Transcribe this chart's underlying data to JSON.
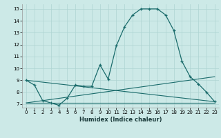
{
  "xlabel": "Humidex (Indice chaleur)",
  "xlim": [
    -0.5,
    23.5
  ],
  "ylim": [
    6.7,
    15.4
  ],
  "yticks": [
    7,
    8,
    9,
    10,
    11,
    12,
    13,
    14,
    15
  ],
  "xticks": [
    0,
    1,
    2,
    3,
    4,
    5,
    6,
    7,
    8,
    9,
    10,
    11,
    12,
    13,
    14,
    15,
    16,
    17,
    18,
    19,
    20,
    21,
    22,
    23
  ],
  "bg_color": "#cce9e7",
  "grid_color": "#aed4d2",
  "line_color": "#1a6b6b",
  "curve_x": [
    0,
    1,
    2,
    3,
    4,
    5,
    6,
    7,
    8,
    9,
    10,
    11,
    12,
    13,
    14,
    15,
    16,
    17,
    18,
    19,
    20,
    21,
    22,
    23
  ],
  "curve_y": [
    9.0,
    8.6,
    7.3,
    7.1,
    6.9,
    7.5,
    8.6,
    8.5,
    8.5,
    10.3,
    9.1,
    11.9,
    13.5,
    14.5,
    15.0,
    15.0,
    15.0,
    14.5,
    13.2,
    10.6,
    9.3,
    8.7,
    8.0,
    7.2
  ],
  "line1_x": [
    0,
    23
  ],
  "line1_y": [
    9.0,
    7.2
  ],
  "line2_x": [
    0,
    23
  ],
  "line2_y": [
    7.1,
    9.3
  ],
  "line3_x": [
    0,
    23
  ],
  "line3_y": [
    7.1,
    7.1
  ]
}
